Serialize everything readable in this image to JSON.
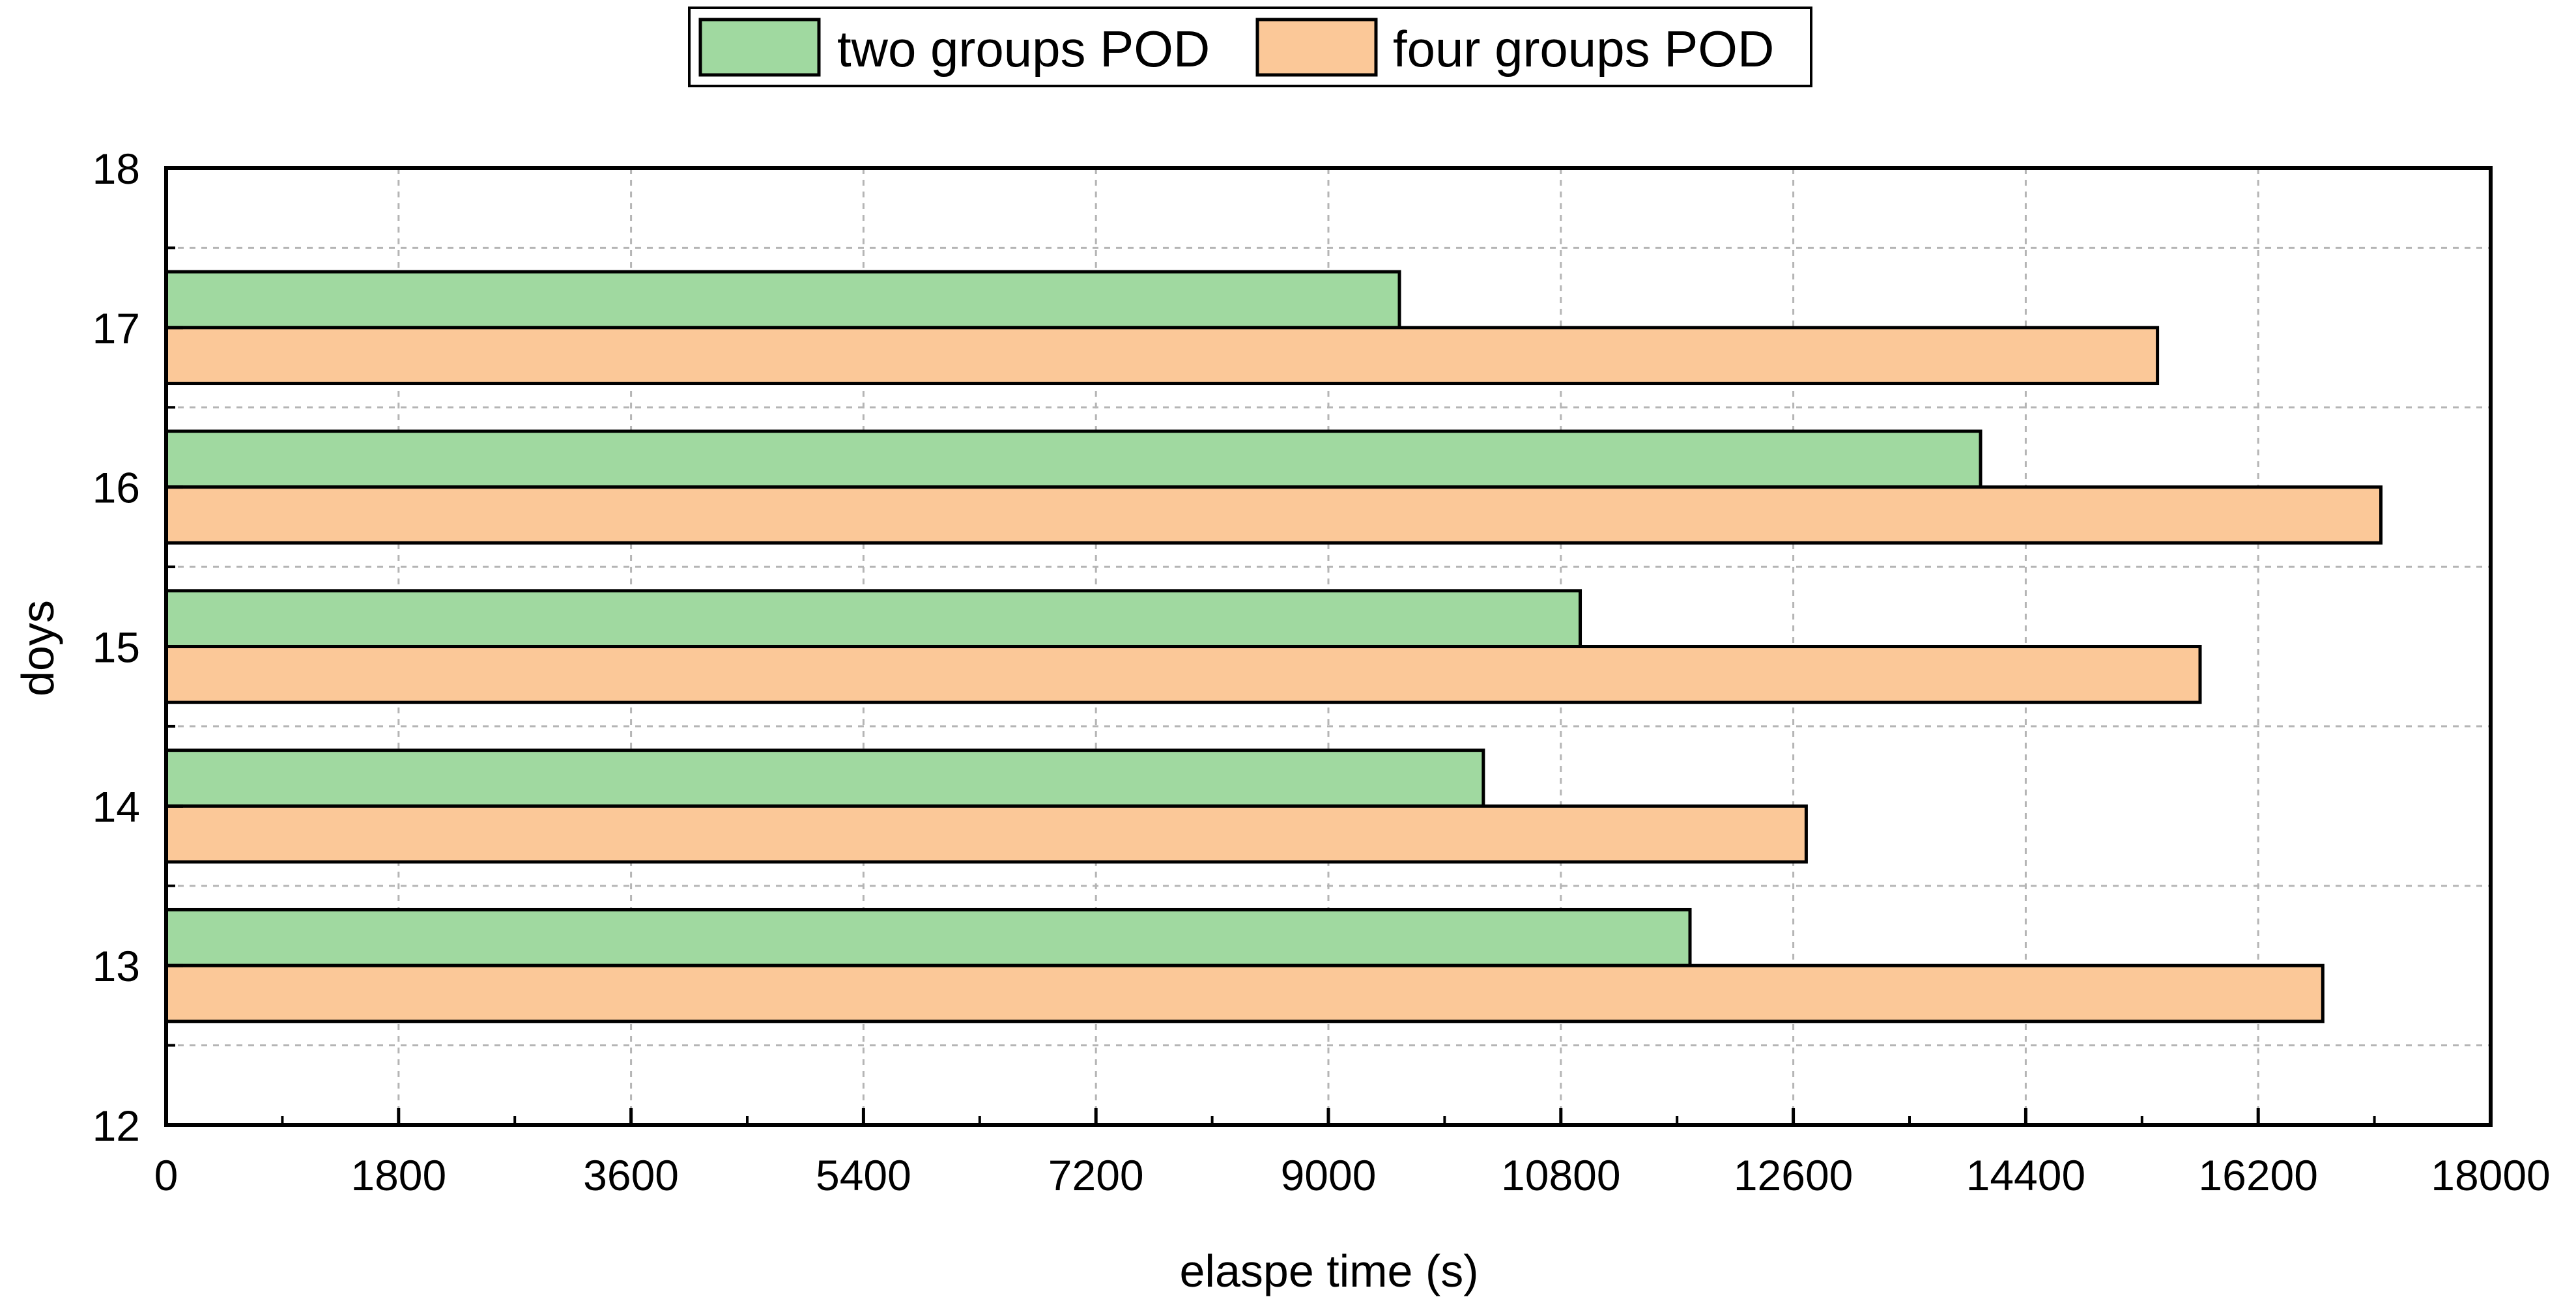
{
  "chart_data": {
    "type": "bar",
    "orientation": "horizontal",
    "title": "",
    "xlabel": "elaspe time (s)",
    "ylabel": "doys",
    "xlim": [
      0,
      18000
    ],
    "ylim": [
      12,
      18
    ],
    "x_ticks": [
      "0",
      "1800",
      "3600",
      "5400",
      "7200",
      "9000",
      "10800",
      "12600",
      "14400",
      "16200",
      "18000"
    ],
    "y_ticks": [
      "12",
      "13",
      "14",
      "15",
      "16",
      "17",
      "18"
    ],
    "categories": [
      "13",
      "14",
      "15",
      "16",
      "17"
    ],
    "series": [
      {
        "name": "two groups POD",
        "color": "#a0d9a0",
        "values": [
          11800,
          10200,
          10950,
          14050,
          9550
        ]
      },
      {
        "name": "four groups POD",
        "color": "#fbc898",
        "values": [
          16700,
          12700,
          15750,
          17150,
          15420
        ]
      }
    ],
    "grid": true,
    "legend_position": "top-center"
  }
}
